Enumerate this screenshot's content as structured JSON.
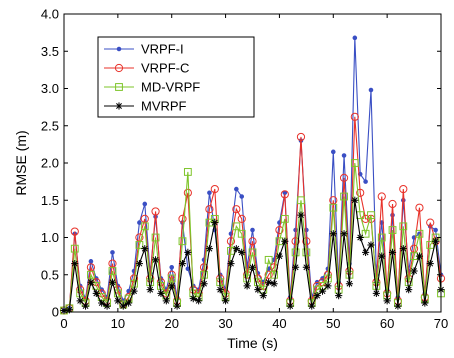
{
  "chart_data": {
    "type": "line",
    "xlabel": "Time (s)",
    "ylabel": "RMSE (m)",
    "xlim": [
      0,
      70
    ],
    "ylim": [
      0,
      4
    ],
    "xticks": [
      0,
      10,
      20,
      30,
      40,
      50,
      60,
      70
    ],
    "xtick_labels": [
      "0",
      "10",
      "20",
      "30",
      "40",
      "50",
      "60",
      "70"
    ],
    "yticks": [
      0,
      0.5,
      1,
      1.5,
      2,
      2.5,
      3,
      3.5,
      4
    ],
    "ytick_labels": [
      "0",
      "0.5",
      "1.0",
      "1.5",
      "2.0",
      "2.5",
      "3.0",
      "3.5",
      "4.0"
    ],
    "grid": false,
    "legend_position": "top-left",
    "x": [
      0,
      1,
      2,
      3,
      4,
      5,
      6,
      7,
      8,
      9,
      10,
      11,
      12,
      13,
      14,
      15,
      16,
      17,
      18,
      19,
      20,
      21,
      22,
      23,
      24,
      25,
      26,
      27,
      28,
      29,
      30,
      31,
      32,
      33,
      34,
      35,
      36,
      37,
      38,
      39,
      40,
      41,
      42,
      43,
      44,
      45,
      46,
      47,
      48,
      49,
      50,
      51,
      52,
      53,
      54,
      55,
      56,
      57,
      58,
      59,
      60,
      61,
      62,
      63,
      64,
      65,
      66,
      67,
      68,
      69,
      70
    ],
    "series": [
      {
        "name": "VRPF-I",
        "color": "#3a4fc4",
        "marker": "dot",
        "values": [
          0.02,
          0.05,
          1.05,
          0.35,
          0.18,
          0.68,
          0.45,
          0.3,
          0.2,
          0.8,
          0.35,
          0.15,
          0.28,
          0.55,
          1.2,
          1.45,
          0.52,
          1.28,
          0.45,
          0.3,
          0.6,
          0.2,
          1.2,
          0.58,
          0.35,
          0.3,
          0.7,
          1.6,
          1.1,
          0.5,
          0.3,
          1.05,
          1.65,
          1.55,
          0.6,
          1.1,
          0.52,
          0.4,
          0.58,
          0.7,
          1.2,
          1.6,
          0.2,
          1.1,
          2.3,
          1.1,
          0.2,
          0.4,
          0.45,
          0.58,
          2.15,
          0.4,
          2.1,
          0.65,
          3.68,
          1.85,
          1.75,
          2.98,
          0.5,
          1.2,
          0.3,
          1.3,
          0.2,
          1.5,
          0.55,
          1.0,
          1.05,
          0.25,
          1.15,
          1.1,
          0.5
        ]
      },
      {
        "name": "VRPF-C",
        "color": "#e8322a",
        "marker": "circle",
        "values": [
          0.02,
          0.05,
          1.08,
          0.3,
          0.15,
          0.6,
          0.4,
          0.25,
          0.15,
          0.65,
          0.3,
          0.1,
          0.2,
          0.45,
          1.0,
          1.25,
          0.45,
          1.35,
          0.4,
          0.25,
          0.5,
          0.15,
          1.25,
          1.6,
          0.3,
          0.25,
          0.6,
          1.38,
          1.65,
          0.45,
          0.25,
          0.95,
          1.38,
          1.25,
          0.5,
          0.95,
          0.45,
          0.35,
          0.5,
          0.6,
          1.1,
          1.58,
          0.15,
          0.95,
          2.35,
          0.95,
          0.15,
          0.35,
          0.4,
          0.5,
          1.5,
          0.35,
          1.8,
          0.55,
          2.62,
          1.6,
          1.25,
          1.25,
          0.4,
          1.55,
          0.25,
          1.45,
          0.15,
          1.65,
          0.45,
          0.85,
          1.4,
          0.2,
          1.2,
          0.95,
          0.45
        ]
      },
      {
        "name": "MD-VRPF",
        "color": "#7ec42a",
        "marker": "square",
        "values": [
          0.02,
          0.05,
          0.85,
          0.25,
          0.12,
          0.5,
          0.35,
          0.2,
          0.12,
          0.55,
          0.25,
          0.1,
          0.18,
          0.38,
          0.9,
          1.15,
          0.4,
          1.0,
          0.35,
          0.22,
          0.45,
          0.12,
          0.95,
          1.88,
          0.25,
          0.2,
          0.5,
          1.2,
          1.25,
          0.4,
          0.2,
          0.82,
          1.15,
          1.05,
          0.45,
          0.8,
          0.4,
          0.3,
          0.7,
          0.5,
          0.95,
          1.25,
          0.12,
          0.8,
          1.5,
          0.8,
          0.12,
          0.3,
          0.35,
          0.45,
          1.4,
          0.3,
          1.55,
          0.5,
          2.0,
          1.3,
          1.05,
          1.3,
          0.35,
          1.0,
          0.22,
          1.1,
          0.12,
          1.15,
          0.4,
          0.75,
          1.05,
          0.18,
          0.9,
          1.0,
          0.25
        ]
      },
      {
        "name": "MVRPF",
        "color": "#000000",
        "marker": "star",
        "values": [
          0.02,
          0.03,
          0.65,
          0.15,
          0.08,
          0.4,
          0.25,
          0.12,
          0.08,
          0.4,
          0.15,
          0.08,
          0.12,
          0.28,
          0.65,
          0.85,
          0.3,
          0.7,
          0.25,
          0.15,
          0.35,
          0.08,
          0.65,
          0.8,
          0.18,
          0.15,
          0.38,
          0.85,
          1.2,
          0.3,
          0.15,
          0.65,
          0.85,
          0.8,
          0.35,
          0.6,
          0.3,
          0.22,
          0.4,
          0.38,
          0.75,
          0.95,
          0.08,
          0.6,
          1.3,
          0.6,
          0.08,
          0.22,
          0.28,
          0.35,
          1.05,
          0.22,
          1.05,
          0.38,
          1.5,
          1.0,
          0.8,
          0.9,
          0.25,
          0.75,
          0.15,
          0.8,
          0.08,
          0.85,
          0.3,
          0.55,
          0.75,
          0.12,
          0.65,
          0.95,
          0.3
        ]
      }
    ]
  }
}
